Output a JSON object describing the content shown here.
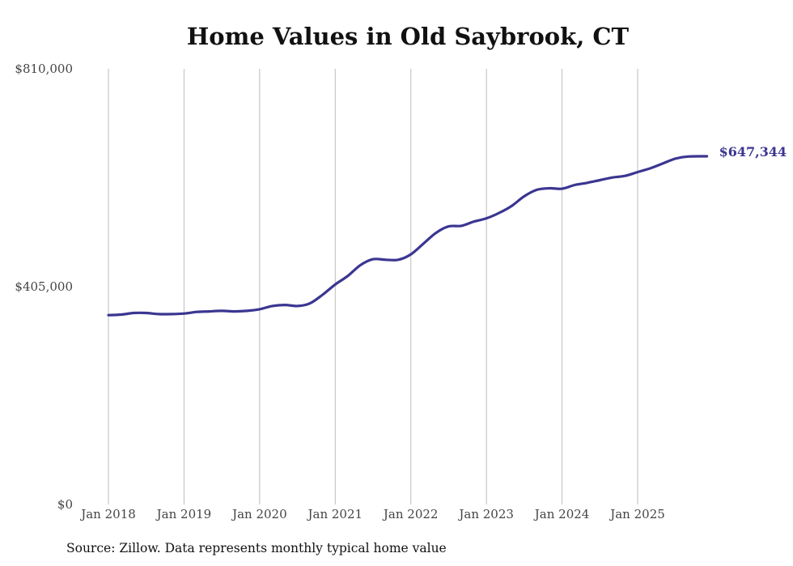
{
  "chart_data": {
    "type": "line",
    "title": "Home Values in Old Saybrook, CT",
    "xlabel": "",
    "ylabel": "",
    "source": "Source: Zillow. Data represents monthly typical home value",
    "ylim": [
      0,
      810000
    ],
    "y_ticks": [
      {
        "value": 0,
        "label": "$0"
      },
      {
        "value": 405000,
        "label": "$405,000"
      },
      {
        "value": 810000,
        "label": "$810,000"
      }
    ],
    "x_range": [
      "2018-01",
      "2025-12"
    ],
    "x_ticks": [
      {
        "date": "2018-01",
        "label": "Jan 2018"
      },
      {
        "date": "2019-01",
        "label": "Jan 2019"
      },
      {
        "date": "2020-01",
        "label": "Jan 2020"
      },
      {
        "date": "2021-01",
        "label": "Jan 2021"
      },
      {
        "date": "2022-01",
        "label": "Jan 2022"
      },
      {
        "date": "2023-01",
        "label": "Jan 2023"
      },
      {
        "date": "2024-01",
        "label": "Jan 2024"
      },
      {
        "date": "2025-01",
        "label": "Jan 2025"
      }
    ],
    "grid": {
      "vertical": true,
      "horizontal": false
    },
    "line_color": "#3b3691",
    "end_label": "$647,344",
    "series": [
      {
        "points": [
          [
            "2018-01",
            352000
          ],
          [
            "2018-03",
            353000
          ],
          [
            "2018-05",
            356000
          ],
          [
            "2018-07",
            356000
          ],
          [
            "2018-09",
            354000
          ],
          [
            "2018-11",
            354000
          ],
          [
            "2019-01",
            355000
          ],
          [
            "2019-03",
            358000
          ],
          [
            "2019-05",
            359000
          ],
          [
            "2019-07",
            360000
          ],
          [
            "2019-09",
            359000
          ],
          [
            "2019-11",
            360000
          ],
          [
            "2020-01",
            363000
          ],
          [
            "2020-03",
            369000
          ],
          [
            "2020-05",
            371000
          ],
          [
            "2020-07",
            369000
          ],
          [
            "2020-09",
            374000
          ],
          [
            "2020-11",
            390000
          ],
          [
            "2021-01",
            409000
          ],
          [
            "2021-03",
            425000
          ],
          [
            "2021-05",
            445000
          ],
          [
            "2021-07",
            456000
          ],
          [
            "2021-09",
            455000
          ],
          [
            "2021-11",
            455000
          ],
          [
            "2022-01",
            465000
          ],
          [
            "2022-03",
            485000
          ],
          [
            "2022-05",
            505000
          ],
          [
            "2022-07",
            517000
          ],
          [
            "2022-09",
            518000
          ],
          [
            "2022-11",
            526000
          ],
          [
            "2023-01",
            532000
          ],
          [
            "2023-03",
            542000
          ],
          [
            "2023-05",
            555000
          ],
          [
            "2023-07",
            573000
          ],
          [
            "2023-09",
            585000
          ],
          [
            "2023-11",
            588000
          ],
          [
            "2024-01",
            587000
          ],
          [
            "2024-03",
            594000
          ],
          [
            "2024-05",
            598000
          ],
          [
            "2024-07",
            603000
          ],
          [
            "2024-09",
            608000
          ],
          [
            "2024-11",
            611000
          ],
          [
            "2025-01",
            618000
          ],
          [
            "2025-03",
            625000
          ],
          [
            "2025-05",
            634000
          ],
          [
            "2025-07",
            643000
          ],
          [
            "2025-09",
            647000
          ],
          [
            "2025-12",
            647344
          ]
        ]
      }
    ]
  }
}
